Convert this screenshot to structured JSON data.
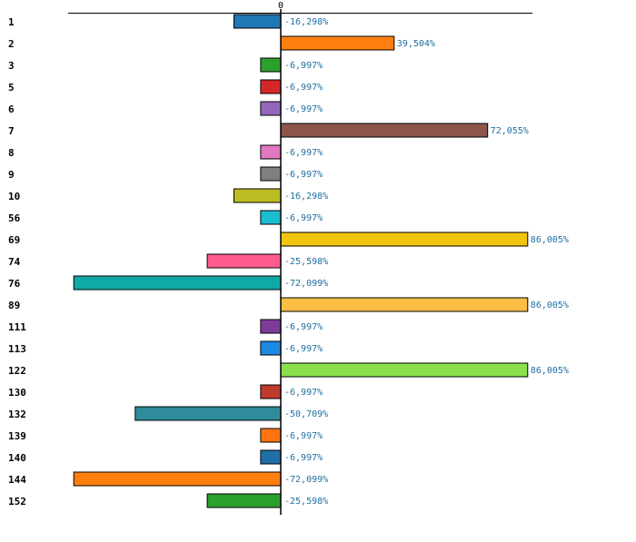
{
  "chart_data": {
    "type": "bar",
    "orientation": "horizontal",
    "title": "",
    "xlabel": "",
    "ylabel": "",
    "zero_tick_label": "0",
    "xlim": [
      -73.8,
      88
    ],
    "grid": false,
    "categories": [
      "1",
      "2",
      "3",
      "5",
      "6",
      "7",
      "8",
      "9",
      "10",
      "56",
      "69",
      "74",
      "76",
      "89",
      "111",
      "113",
      "122",
      "130",
      "132",
      "139",
      "140",
      "144",
      "152"
    ],
    "values": [
      -16.298,
      39.504,
      -6.997,
      -6.997,
      -6.997,
      72.055,
      -6.997,
      -6.997,
      -16.298,
      -6.997,
      86.005,
      -25.598,
      -72.099,
      86.005,
      -6.997,
      -6.997,
      86.005,
      -6.997,
      -50.709,
      -6.997,
      -6.997,
      -72.099,
      -25.598
    ],
    "value_labels": [
      "-16,298%",
      "39,504%",
      "-6,997%",
      "-6,997%",
      "-6,997%",
      "72,055%",
      "-6,997%",
      "-6,997%",
      "-16,298%",
      "-6,997%",
      "86,005%",
      "-25,598%",
      "-72,099%",
      "86,005%",
      "-6,997%",
      "-6,997%",
      "86,005%",
      "-6,997%",
      "-50,709%",
      "-6,997%",
      "-6,997%",
      "-72,099%",
      "-25,598%"
    ],
    "colors": [
      "#1f77b4",
      "#ff7f0e",
      "#2ca02c",
      "#d62728",
      "#9467bd",
      "#8c564b",
      "#e377c2",
      "#7f7f7f",
      "#bcbd22",
      "#17becf",
      "#f1c40f",
      "#ff5b8d",
      "#0fa9a6",
      "#fbbf45",
      "#7d3c98",
      "#1e88e5",
      "#8be04e",
      "#c0392b",
      "#2e8b9a",
      "#ff7410",
      "#1f6fa8",
      "#ff7f0e",
      "#2ca02c"
    ]
  }
}
